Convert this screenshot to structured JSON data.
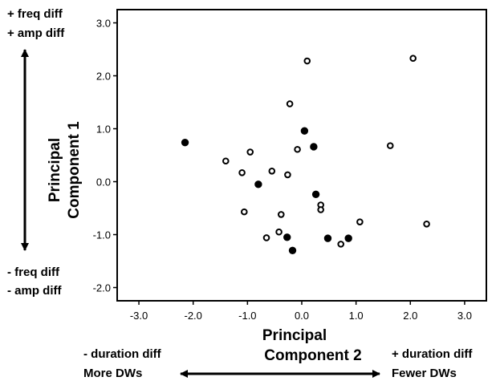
{
  "chart_data": {
    "type": "scatter",
    "xlabel_lines": [
      "Principal",
      "Component 2"
    ],
    "ylabel_lines": [
      "Principal",
      "Component 1"
    ],
    "xlim": [
      -3.4,
      3.4
    ],
    "ylim": [
      -2.25,
      3.25
    ],
    "x_ticks": [
      -3.0,
      -2.0,
      -1.0,
      0.0,
      1.0,
      2.0,
      3.0
    ],
    "x_tick_labels": [
      "-3.0",
      "-2.0",
      "-1.0",
      "0.0",
      "1.0",
      "2.0",
      "3.0"
    ],
    "y_ticks": [
      3.0,
      2.0,
      1.0,
      0.0,
      -1.0,
      -2.0
    ],
    "y_tick_labels": [
      "3.0",
      "2.0",
      "1.0",
      "0.0",
      "-1.0",
      "-2.0"
    ],
    "grid": false,
    "series": [
      {
        "marker": "filled-circle",
        "color": "#000000",
        "points": [
          [
            -2.15,
            0.74
          ],
          [
            -0.8,
            -0.05
          ],
          [
            0.05,
            0.96
          ],
          [
            0.22,
            0.66
          ],
          [
            0.26,
            -0.24
          ],
          [
            -0.27,
            -1.05
          ],
          [
            -0.17,
            -1.3
          ],
          [
            0.48,
            -1.07
          ],
          [
            0.86,
            -1.07
          ]
        ]
      },
      {
        "marker": "open-circle",
        "color": "#000000",
        "points": [
          [
            0.1,
            2.28
          ],
          [
            2.05,
            2.33
          ],
          [
            -0.22,
            1.47
          ],
          [
            1.63,
            0.68
          ],
          [
            -0.95,
            0.56
          ],
          [
            -0.08,
            0.61
          ],
          [
            -1.4,
            0.39
          ],
          [
            -1.1,
            0.17
          ],
          [
            -0.55,
            0.2
          ],
          [
            -0.26,
            0.13
          ],
          [
            0.35,
            -0.44
          ],
          [
            0.35,
            -0.53
          ],
          [
            -1.06,
            -0.57
          ],
          [
            -0.38,
            -0.62
          ],
          [
            1.07,
            -0.76
          ],
          [
            2.3,
            -0.8
          ],
          [
            -0.42,
            -0.95
          ],
          [
            -0.65,
            -1.06
          ],
          [
            0.72,
            -1.18
          ]
        ]
      }
    ],
    "annotations": {
      "top_left_lines": [
        "+ freq diff",
        "+ amp diff"
      ],
      "bottom_left_lines": [
        "- freq diff",
        "- amp diff"
      ],
      "bottom_left_x_lines": [
        "- duration diff",
        "More DWs"
      ],
      "bottom_right_x_lines": [
        "+ duration diff",
        "Fewer DWs"
      ]
    }
  }
}
